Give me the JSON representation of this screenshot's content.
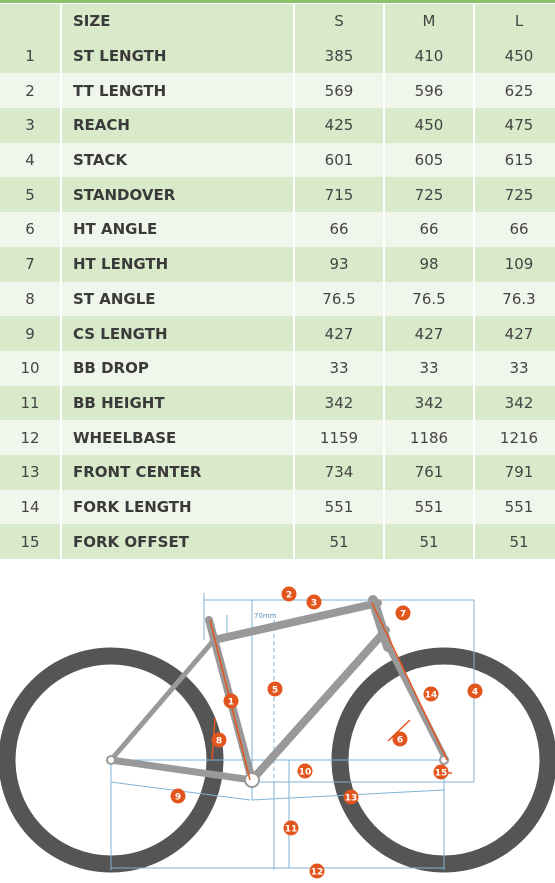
{
  "table": {
    "header": {
      "idx": "",
      "name": "SIZE",
      "sizes": [
        "S",
        "M",
        "L"
      ]
    },
    "rows": [
      {
        "idx": "1",
        "name": "ST LENGTH",
        "values": [
          "385",
          "410",
          "450"
        ]
      },
      {
        "idx": "2",
        "name": "TT LENGTH",
        "values": [
          "569",
          "596",
          "625"
        ]
      },
      {
        "idx": "3",
        "name": "REACH",
        "values": [
          "425",
          "450",
          "475"
        ]
      },
      {
        "idx": "4",
        "name": "STACK",
        "values": [
          "601",
          "605",
          "615"
        ]
      },
      {
        "idx": "5",
        "name": "STANDOVER",
        "values": [
          "715",
          "725",
          "725"
        ]
      },
      {
        "idx": "6",
        "name": "HT ANGLE",
        "values": [
          "66",
          "66",
          "66"
        ]
      },
      {
        "idx": "7",
        "name": "HT LENGTH",
        "values": [
          "93",
          "98",
          "109"
        ]
      },
      {
        "idx": "8",
        "name": "ST ANGLE",
        "values": [
          "76.5",
          "76.5",
          "76.3"
        ]
      },
      {
        "idx": "9",
        "name": "CS LENGTH",
        "values": [
          "427",
          "427",
          "427"
        ]
      },
      {
        "idx": "10",
        "name": "BB DROP",
        "values": [
          "33",
          "33",
          "33"
        ]
      },
      {
        "idx": "11",
        "name": "BB HEIGHT",
        "values": [
          "342",
          "342",
          "342"
        ]
      },
      {
        "idx": "12",
        "name": "WHEELBASE",
        "values": [
          "1159",
          "1186",
          "1216"
        ]
      },
      {
        "idx": "13",
        "name": "FRONT CENTER",
        "values": [
          "734",
          "761",
          "791"
        ]
      },
      {
        "idx": "14",
        "name": "FORK LENGTH",
        "values": [
          "551",
          "551",
          "551"
        ]
      },
      {
        "idx": "15",
        "name": "FORK OFFSET",
        "values": [
          "51",
          "51",
          "51"
        ]
      }
    ]
  },
  "diagram": {
    "standover_note": "70mm",
    "markers": [
      "1",
      "2",
      "3",
      "4",
      "5",
      "6",
      "7",
      "8",
      "9",
      "10",
      "11",
      "12",
      "13",
      "14",
      "15"
    ]
  },
  "colors": {
    "accent_green": "#8cc06b",
    "row_dark": "#d9eacb",
    "row_light": "#f1f6ec",
    "marker_orange": "#e2561e",
    "dimension_line": "#7fb2d6",
    "frame_grey": "#9a9a9a",
    "tire_dark": "#555555"
  }
}
